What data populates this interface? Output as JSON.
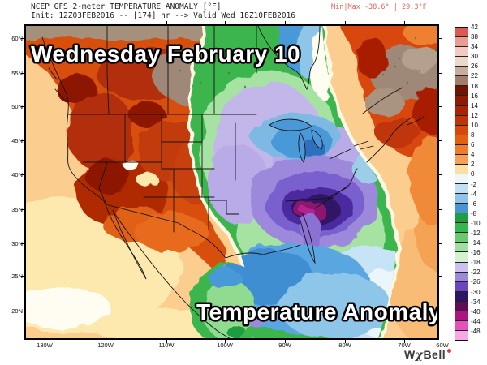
{
  "header": {
    "line1": "NCEP GFS 2-meter TEMPERATURE ANOMALY [°F]",
    "line2": "Init: 12Z03FEB2016 -- [174] hr --> Valid Wed 18Z10FEB2016",
    "minmax": "Min|Max -38.6° | 29.3°F",
    "minmax_color": "#e0635a"
  },
  "map": {
    "overlay_top": "Wednesday February 10",
    "overlay_bottom": "Temperature Anomaly"
  },
  "axes": {
    "lat": [
      "60N",
      "55N",
      "50N",
      "45N",
      "40N",
      "35N",
      "30N",
      "25N",
      "20N"
    ],
    "lon": [
      "130W",
      "120W",
      "110W",
      "100W",
      "90W",
      "80W",
      "70W",
      "60W"
    ]
  },
  "colorbar": {
    "labels": [
      "42",
      "38",
      "34",
      "30",
      "26",
      "22",
      "18",
      "16",
      "14",
      "12",
      "10",
      "8",
      "6",
      "4",
      "2",
      "0",
      "-2",
      "-4",
      "-6",
      "-8",
      "-10",
      "-12",
      "-14",
      "-16",
      "-18",
      "-22",
      "-26",
      "-30",
      "-34",
      "-40",
      "-44",
      "-48"
    ],
    "band_colors": [
      "#dc5a52",
      "#e99b94",
      "#f3c9c1",
      "#ead9ca",
      "#cbac9a",
      "#a07e6a",
      "#701400",
      "#8e1b02",
      "#a82502",
      "#c13305",
      "#d54a0b",
      "#e2600f",
      "#ed7d28",
      "#f4a055",
      "#fbdfa4",
      "#eef6f8",
      "#c2e0f4",
      "#8cc4ec",
      "#4a94d4",
      "#1d9e40",
      "#36b553",
      "#67ca6f",
      "#9ddf9d",
      "#d3f2cd",
      "#ccc1ed",
      "#9d89dc",
      "#6846c0",
      "#2e1468",
      "#5c0f53",
      "#aa1580",
      "#e550bb",
      "#f8a9e5"
    ]
  },
  "branding": {
    "w": "W",
    "chi": "χ",
    "bell": "Bell"
  }
}
